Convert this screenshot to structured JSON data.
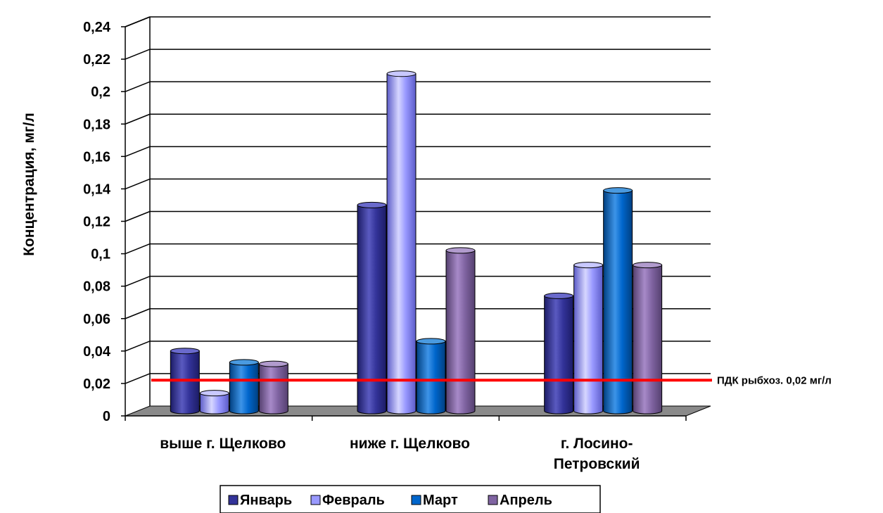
{
  "chart_data": {
    "type": "bar",
    "ylabel": "Концентрация, мг/л",
    "ylim": [
      0,
      0.24
    ],
    "yticks": [
      "0",
      "0,02",
      "0,04",
      "0,06",
      "0,08",
      "0,1",
      "0,12",
      "0,14",
      "0,16",
      "0,18",
      "0,2",
      "0,22",
      "0,24"
    ],
    "categories": [
      {
        "lines": [
          "выше г. Щелково"
        ]
      },
      {
        "lines": [
          "ниже г. Щелково"
        ]
      },
      {
        "lines": [
          "г. Лосино-",
          "Петровский"
        ]
      }
    ],
    "series": [
      {
        "name": "Январь",
        "values": [
          0.037,
          0.127,
          0.071
        ]
      },
      {
        "name": "Февраль",
        "values": [
          0.011,
          0.208,
          0.09
        ]
      },
      {
        "name": "Март",
        "values": [
          0.03,
          0.043,
          0.136
        ]
      },
      {
        "name": "Апрель",
        "values": [
          0.029,
          0.099,
          0.09
        ]
      }
    ],
    "reference_line": {
      "value": 0.022,
      "label": "ПДК рыбхоз. 0,02 мг/л",
      "color": "#ff0000"
    },
    "grid": true,
    "legend_position": "bottom",
    "style": "3d-cylinder"
  },
  "colors": {
    "Январь": {
      "face": "#333399",
      "light": "#5a5ac0",
      "dark": "#1c1c66",
      "top": "#6a6acc"
    },
    "Февраль": {
      "face": "#9999ff",
      "light": "#d6d6ff",
      "dark": "#5c5cc8",
      "top": "#c8c8ff"
    },
    "Март": {
      "face": "#0066cc",
      "light": "#3d94e8",
      "dark": "#003f80",
      "top": "#4a9ae0"
    },
    "Апрель": {
      "face": "#8064a2",
      "light": "#a78ac8",
      "dark": "#55406f",
      "top": "#b19bcd"
    }
  }
}
